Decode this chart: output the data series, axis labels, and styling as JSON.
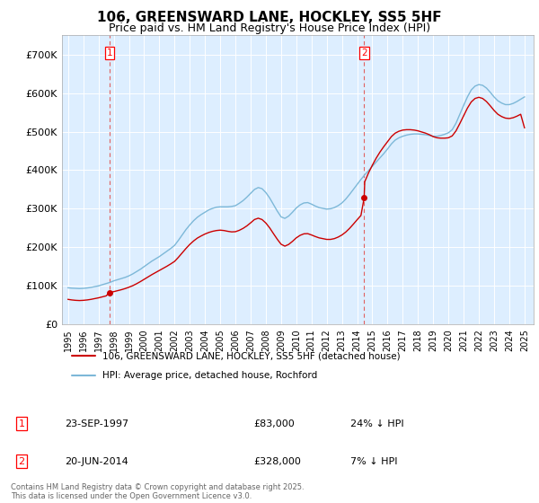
{
  "title": "106, GREENSWARD LANE, HOCKLEY, SS5 5HF",
  "subtitle": "Price paid vs. HM Land Registry's House Price Index (HPI)",
  "legend_line1": "106, GREENSWARD LANE, HOCKLEY, SS5 5HF (detached house)",
  "legend_line2": "HPI: Average price, detached house, Rochford",
  "footer": "Contains HM Land Registry data © Crown copyright and database right 2025.\nThis data is licensed under the Open Government Licence v3.0.",
  "transactions": [
    {
      "label": "1",
      "date": "23-SEP-1997",
      "price": 83000,
      "hpi_diff": "24% ↓ HPI",
      "year": 1997.73
    },
    {
      "label": "2",
      "date": "20-JUN-2014",
      "price": 328000,
      "hpi_diff": "7% ↓ HPI",
      "year": 2014.46
    }
  ],
  "hpi_color": "#7db8d8",
  "price_color": "#cc0000",
  "vline_color": "#e06060",
  "ylim": [
    0,
    750000
  ],
  "yticks": [
    0,
    100000,
    200000,
    300000,
    400000,
    500000,
    600000,
    700000
  ],
  "ytick_labels": [
    "£0",
    "£100K",
    "£200K",
    "£300K",
    "£400K",
    "£500K",
    "£600K",
    "£700K"
  ],
  "xlim_start": 1994.6,
  "xlim_end": 2025.6,
  "chart_bg": "#ddeeff",
  "hpi_data": [
    [
      1995,
      95000
    ],
    [
      1995.25,
      94000
    ],
    [
      1995.5,
      93500
    ],
    [
      1995.75,
      93000
    ],
    [
      1996,
      93500
    ],
    [
      1996.25,
      94500
    ],
    [
      1996.5,
      96000
    ],
    [
      1996.75,
      98000
    ],
    [
      1997,
      100000
    ],
    [
      1997.25,
      103000
    ],
    [
      1997.5,
      106000
    ],
    [
      1997.75,
      109000
    ],
    [
      1998,
      113000
    ],
    [
      1998.25,
      116000
    ],
    [
      1998.5,
      119000
    ],
    [
      1998.75,
      122000
    ],
    [
      1999,
      126000
    ],
    [
      1999.25,
      131000
    ],
    [
      1999.5,
      137000
    ],
    [
      1999.75,
      143000
    ],
    [
      2000,
      150000
    ],
    [
      2000.25,
      157000
    ],
    [
      2000.5,
      164000
    ],
    [
      2000.75,
      170000
    ],
    [
      2001,
      176000
    ],
    [
      2001.25,
      183000
    ],
    [
      2001.5,
      190000
    ],
    [
      2001.75,
      197000
    ],
    [
      2002,
      205000
    ],
    [
      2002.25,
      218000
    ],
    [
      2002.5,
      232000
    ],
    [
      2002.75,
      246000
    ],
    [
      2003,
      258000
    ],
    [
      2003.25,
      269000
    ],
    [
      2003.5,
      278000
    ],
    [
      2003.75,
      285000
    ],
    [
      2004,
      291000
    ],
    [
      2004.25,
      297000
    ],
    [
      2004.5,
      301000
    ],
    [
      2004.75,
      304000
    ],
    [
      2005,
      305000
    ],
    [
      2005.25,
      305000
    ],
    [
      2005.5,
      305000
    ],
    [
      2005.75,
      306000
    ],
    [
      2006,
      308000
    ],
    [
      2006.25,
      314000
    ],
    [
      2006.5,
      321000
    ],
    [
      2006.75,
      330000
    ],
    [
      2007,
      340000
    ],
    [
      2007.25,
      350000
    ],
    [
      2007.5,
      355000
    ],
    [
      2007.75,
      352000
    ],
    [
      2008,
      342000
    ],
    [
      2008.25,
      328000
    ],
    [
      2008.5,
      311000
    ],
    [
      2008.75,
      294000
    ],
    [
      2009,
      279000
    ],
    [
      2009.25,
      275000
    ],
    [
      2009.5,
      281000
    ],
    [
      2009.75,
      291000
    ],
    [
      2010,
      302000
    ],
    [
      2010.25,
      310000
    ],
    [
      2010.5,
      315000
    ],
    [
      2010.75,
      316000
    ],
    [
      2011,
      312000
    ],
    [
      2011.25,
      307000
    ],
    [
      2011.5,
      303000
    ],
    [
      2011.75,
      301000
    ],
    [
      2012,
      299000
    ],
    [
      2012.25,
      300000
    ],
    [
      2012.5,
      303000
    ],
    [
      2012.75,
      308000
    ],
    [
      2013,
      315000
    ],
    [
      2013.25,
      325000
    ],
    [
      2013.5,
      337000
    ],
    [
      2013.75,
      350000
    ],
    [
      2014,
      363000
    ],
    [
      2014.25,
      376000
    ],
    [
      2014.5,
      388000
    ],
    [
      2014.75,
      399000
    ],
    [
      2015,
      410000
    ],
    [
      2015.25,
      421000
    ],
    [
      2015.5,
      432000
    ],
    [
      2015.75,
      443000
    ],
    [
      2016,
      455000
    ],
    [
      2016.25,
      468000
    ],
    [
      2016.5,
      478000
    ],
    [
      2016.75,
      484000
    ],
    [
      2017,
      488000
    ],
    [
      2017.25,
      491000
    ],
    [
      2017.5,
      493000
    ],
    [
      2017.75,
      494000
    ],
    [
      2018,
      494000
    ],
    [
      2018.25,
      493000
    ],
    [
      2018.5,
      492000
    ],
    [
      2018.75,
      490000
    ],
    [
      2019,
      488000
    ],
    [
      2019.25,
      488000
    ],
    [
      2019.5,
      490000
    ],
    [
      2019.75,
      493000
    ],
    [
      2020,
      497000
    ],
    [
      2020.25,
      505000
    ],
    [
      2020.5,
      522000
    ],
    [
      2020.75,
      545000
    ],
    [
      2021,
      568000
    ],
    [
      2021.25,
      590000
    ],
    [
      2021.5,
      608000
    ],
    [
      2021.75,
      618000
    ],
    [
      2022,
      622000
    ],
    [
      2022.25,
      620000
    ],
    [
      2022.5,
      613000
    ],
    [
      2022.75,
      602000
    ],
    [
      2023,
      590000
    ],
    [
      2023.25,
      580000
    ],
    [
      2023.5,
      574000
    ],
    [
      2023.75,
      570000
    ],
    [
      2024,
      570000
    ],
    [
      2024.25,
      573000
    ],
    [
      2024.5,
      578000
    ],
    [
      2024.75,
      584000
    ],
    [
      2025,
      590000
    ]
  ],
  "red_line_data": [
    [
      1995,
      65000
    ],
    [
      1995.25,
      63500
    ],
    [
      1995.5,
      62500
    ],
    [
      1995.75,
      62000
    ],
    [
      1996,
      62500
    ],
    [
      1996.25,
      63500
    ],
    [
      1996.5,
      65000
    ],
    [
      1996.75,
      67000
    ],
    [
      1997,
      69000
    ],
    [
      1997.25,
      71500
    ],
    [
      1997.5,
      74000
    ],
    [
      1997.73,
      83000
    ],
    [
      1998,
      85000
    ],
    [
      1998.25,
      87500
    ],
    [
      1998.5,
      90000
    ],
    [
      1998.75,
      93000
    ],
    [
      1999,
      96500
    ],
    [
      1999.25,
      100500
    ],
    [
      1999.5,
      105500
    ],
    [
      1999.75,
      111000
    ],
    [
      2000,
      117000
    ],
    [
      2000.25,
      123000
    ],
    [
      2000.5,
      129000
    ],
    [
      2000.75,
      134500
    ],
    [
      2001,
      140000
    ],
    [
      2001.25,
      145500
    ],
    [
      2001.5,
      151000
    ],
    [
      2001.75,
      157000
    ],
    [
      2002,
      163500
    ],
    [
      2002.25,
      174000
    ],
    [
      2002.5,
      185500
    ],
    [
      2002.75,
      197000
    ],
    [
      2003,
      207500
    ],
    [
      2003.25,
      216500
    ],
    [
      2003.5,
      224000
    ],
    [
      2003.75,
      229500
    ],
    [
      2004,
      234500
    ],
    [
      2004.25,
      238500
    ],
    [
      2004.5,
      241500
    ],
    [
      2004.75,
      243500
    ],
    [
      2005,
      244500
    ],
    [
      2005.25,
      243500
    ],
    [
      2005.5,
      241500
    ],
    [
      2005.75,
      240000
    ],
    [
      2006,
      240500
    ],
    [
      2006.25,
      244000
    ],
    [
      2006.5,
      249000
    ],
    [
      2006.75,
      255500
    ],
    [
      2007,
      263500
    ],
    [
      2007.25,
      272000
    ],
    [
      2007.5,
      275500
    ],
    [
      2007.75,
      272000
    ],
    [
      2008,
      263000
    ],
    [
      2008.25,
      250500
    ],
    [
      2008.5,
      235500
    ],
    [
      2008.75,
      221000
    ],
    [
      2009,
      208000
    ],
    [
      2009.25,
      203000
    ],
    [
      2009.5,
      207500
    ],
    [
      2009.75,
      215500
    ],
    [
      2010,
      224500
    ],
    [
      2010.25,
      231000
    ],
    [
      2010.5,
      235000
    ],
    [
      2010.75,
      235500
    ],
    [
      2011,
      232000
    ],
    [
      2011.25,
      228000
    ],
    [
      2011.5,
      224500
    ],
    [
      2011.75,
      222500
    ],
    [
      2012,
      220500
    ],
    [
      2012.25,
      220500
    ],
    [
      2012.5,
      222500
    ],
    [
      2012.75,
      226500
    ],
    [
      2013,
      232000
    ],
    [
      2013.25,
      239500
    ],
    [
      2013.5,
      249000
    ],
    [
      2013.75,
      260000
    ],
    [
      2014,
      271500
    ],
    [
      2014.25,
      282500
    ],
    [
      2014.46,
      328000
    ],
    [
      2014.5,
      370000
    ],
    [
      2014.75,
      393000
    ],
    [
      2015,
      413000
    ],
    [
      2015.25,
      431000
    ],
    [
      2015.5,
      447000
    ],
    [
      2015.75,
      461000
    ],
    [
      2016,
      474000
    ],
    [
      2016.25,
      487000
    ],
    [
      2016.5,
      496000
    ],
    [
      2016.75,
      501000
    ],
    [
      2017,
      504000
    ],
    [
      2017.25,
      505000
    ],
    [
      2017.5,
      505000
    ],
    [
      2017.75,
      504000
    ],
    [
      2018,
      502000
    ],
    [
      2018.25,
      499000
    ],
    [
      2018.5,
      496000
    ],
    [
      2018.75,
      492000
    ],
    [
      2019,
      487000
    ],
    [
      2019.25,
      484000
    ],
    [
      2019.5,
      483000
    ],
    [
      2019.75,
      483000
    ],
    [
      2020,
      484000
    ],
    [
      2020.25,
      489000
    ],
    [
      2020.5,
      502000
    ],
    [
      2020.75,
      521000
    ],
    [
      2021,
      541000
    ],
    [
      2021.25,
      561000
    ],
    [
      2021.5,
      577000
    ],
    [
      2021.75,
      586000
    ],
    [
      2022,
      589000
    ],
    [
      2022.25,
      586000
    ],
    [
      2022.5,
      578000
    ],
    [
      2022.75,
      567000
    ],
    [
      2023,
      555000
    ],
    [
      2023.25,
      545000
    ],
    [
      2023.5,
      539000
    ],
    [
      2023.75,
      535000
    ],
    [
      2024,
      534000
    ],
    [
      2024.25,
      536000
    ],
    [
      2024.5,
      540000
    ],
    [
      2024.75,
      545000
    ],
    [
      2025,
      510000
    ]
  ],
  "transaction1_year": 1997.73,
  "transaction1_price": 83000,
  "transaction2_year": 2014.46,
  "transaction2_price": 328000
}
